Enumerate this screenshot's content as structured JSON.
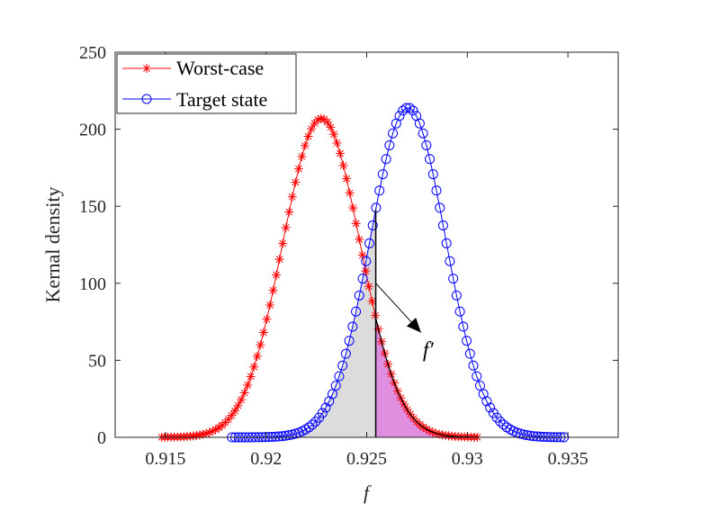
{
  "chart_data": {
    "type": "line",
    "title": "",
    "xlabel": "f",
    "ylabel": "Kernal density",
    "xlim": [
      0.9125,
      0.9375
    ],
    "ylim": [
      0,
      250
    ],
    "xticks": [
      0.915,
      0.92,
      0.925,
      0.93,
      0.935
    ],
    "yticks": [
      0,
      50,
      100,
      150,
      200,
      250
    ],
    "xtick_labels": [
      "0.915",
      "0.92",
      "0.925",
      "0.93",
      "0.935"
    ],
    "ytick_labels": [
      "0",
      "50",
      "100",
      "150",
      "200",
      "250"
    ],
    "grid": false,
    "legend_position": "top-left",
    "series": [
      {
        "name": "Worst-case",
        "color": "#ff0000",
        "marker": "asterisk",
        "mean": 0.92275,
        "std": 0.001928,
        "peak": 207,
        "x_start": 0.9148,
        "x_end": 0.9305,
        "points": 100
      },
      {
        "name": "Target state",
        "color": "#0000ff",
        "marker": "circle",
        "mean": 0.92705,
        "std": 0.001861,
        "peak": 214,
        "x_start": 0.9183,
        "x_end": 0.9348,
        "points": 100
      }
    ],
    "threshold": 0.92545,
    "shaded_regions": [
      {
        "series": "Target state",
        "from": 0.9183,
        "to": 0.92545,
        "color": "#dcdcdc"
      },
      {
        "series": "Worst-case",
        "from": 0.92545,
        "to": 0.9305,
        "color": "#e08fe0"
      }
    ],
    "annotation": {
      "text": "f′",
      "arrow_from": {
        "x": 0.92545,
        "y": 100
      },
      "arrow_to": {
        "x": 0.9277,
        "y": 68
      }
    }
  }
}
